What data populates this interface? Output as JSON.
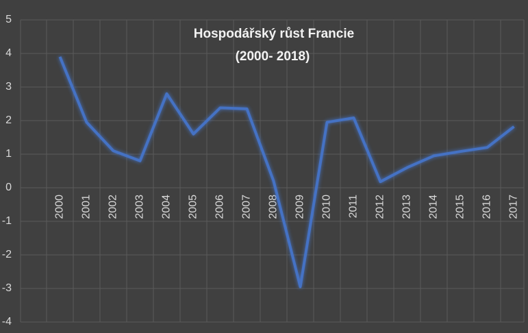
{
  "chart_data": {
    "type": "line",
    "title": "Hospodářský růst Francie",
    "subtitle": "(2000- 2018)",
    "categories": [
      "2000",
      "2001",
      "2002",
      "2003",
      "2004",
      "2005",
      "2006",
      "2007",
      "2008",
      "2009",
      "2010",
      "2011",
      "2012",
      "2013",
      "2014",
      "2015",
      "2016",
      "2017"
    ],
    "series": [
      {
        "name": "Hospodářský růst Francie",
        "color": "#4472c4",
        "values": [
          3.9,
          1.95,
          1.1,
          0.8,
          2.8,
          1.6,
          2.38,
          2.35,
          0.2,
          -2.95,
          1.95,
          2.08,
          0.18,
          0.6,
          0.95,
          1.08,
          1.2,
          1.82
        ]
      }
    ],
    "ylim": [
      -4,
      5
    ],
    "yticks": [
      -4,
      -3,
      -2,
      -1,
      0,
      1,
      2,
      3,
      4,
      5
    ],
    "grid": true
  }
}
